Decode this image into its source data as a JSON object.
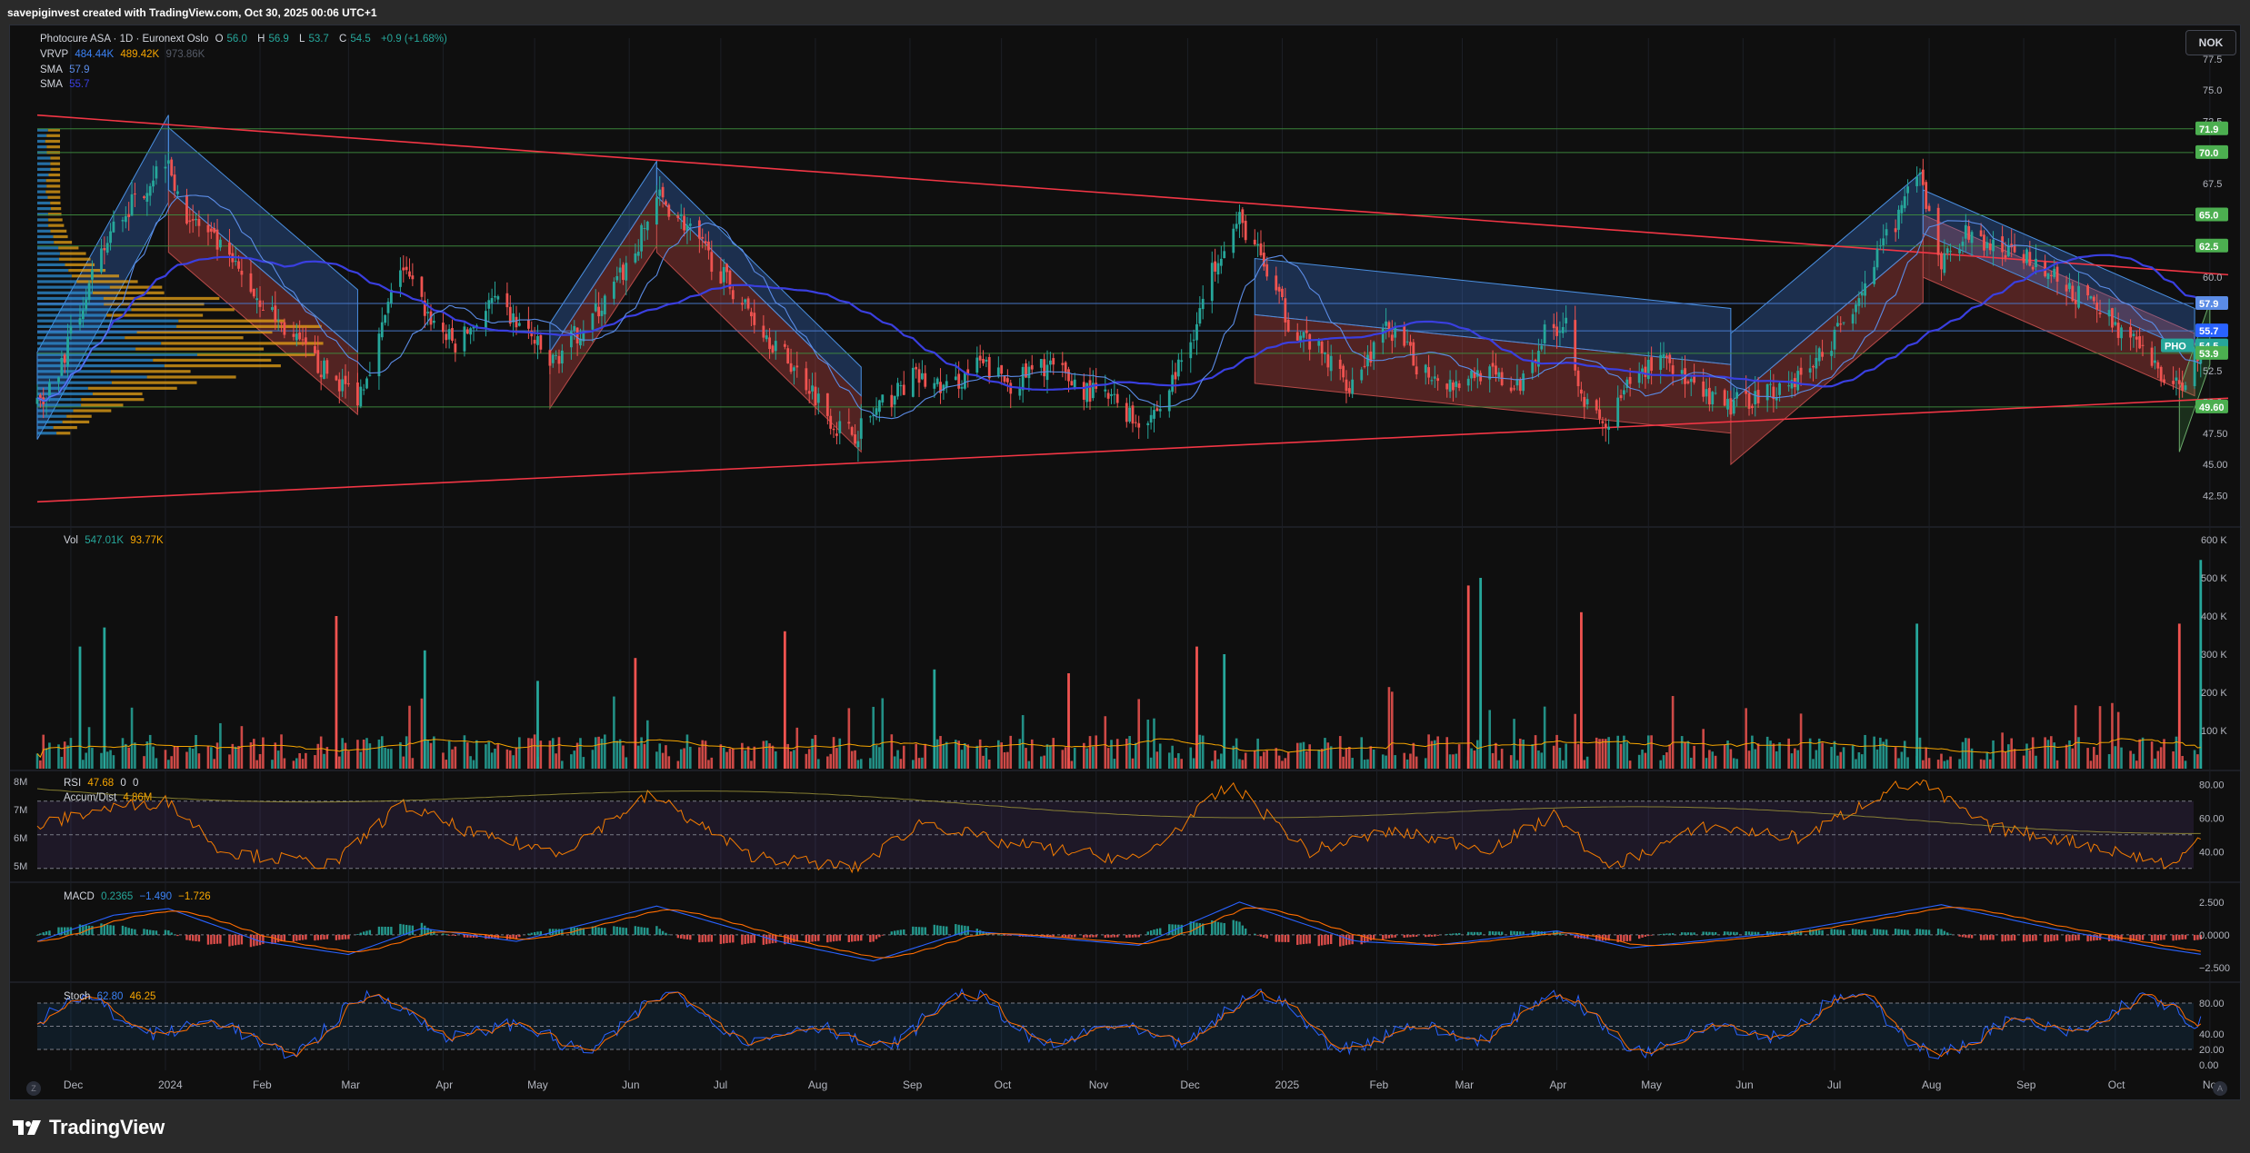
{
  "attribution": "savepiginvest created with TradingView.com, Oct 30, 2025 00:06 UTC+1",
  "footer_brand": "TradingView",
  "currency_button": "NOK",
  "colors": {
    "up": "#26a69a",
    "down": "#ef5350",
    "trendline": "#f23645",
    "sma_fast": "#2962ff",
    "sma_slow": "#5b8ce6",
    "vrvp_up": "#2e8fd6",
    "vrvp_down": "#e8a317",
    "hline": "#4caf50",
    "rsi": "#f57c00",
    "macd": "#2962ff",
    "signal": "#ff6d00",
    "stoch_k": "#2962ff",
    "stoch_d": "#ff6d00"
  },
  "legends": {
    "main": {
      "symbol": "Photocure ASA · 1D · Euronext Oslo",
      "o_label": "O",
      "o": "56.0",
      "h_label": "H",
      "h": "56.9",
      "l_label": "L",
      "l": "53.7",
      "c_label": "C",
      "c": "54.5",
      "change": "+0.9 (+1.68%)"
    },
    "vrvp": {
      "label": "VRVP",
      "v1": "484.44K",
      "v2": "489.42K",
      "v3": "973.86K"
    },
    "sma1": {
      "label": "SMA",
      "value": "57.9"
    },
    "sma2": {
      "label": "SMA",
      "value": "55.7"
    },
    "vol": {
      "label": "Vol",
      "v1": "547.01K",
      "v2": "93.77K"
    },
    "rsi": {
      "label": "RSI",
      "v1": "47.68",
      "v2": "0",
      "v3": "0"
    },
    "accum": {
      "label": "Accum/Dist",
      "value": "4.86M"
    },
    "macd": {
      "label": "MACD",
      "v1": "0.2365",
      "v2": "−1.490",
      "v3": "−1.726"
    },
    "stoch": {
      "label": "Stoch",
      "v1": "62.80",
      "v2": "46.25"
    }
  },
  "icons": [
    "tradingview-logo-icon",
    "zoom-left-icon",
    "zoom-right-icon"
  ],
  "corner_buttons": {
    "left": "Z",
    "right": "A"
  },
  "chart_data": {
    "type": "candlestick",
    "symbol": "PHO",
    "interval": "1D",
    "price_axis": {
      "ticks": [
        "77.5",
        "75.0",
        "72.5",
        "67.5",
        "60.0",
        "52.5",
        "50.0",
        "47.50",
        "45.00",
        "42.50"
      ],
      "range": [
        41.0,
        78.0
      ]
    },
    "price_tags": [
      {
        "value": "71.9",
        "color": "#4caf50"
      },
      {
        "value": "70.0",
        "color": "#4caf50"
      },
      {
        "value": "65.0",
        "color": "#4caf50"
      },
      {
        "value": "62.5",
        "color": "#4caf50"
      },
      {
        "value": "57.9",
        "color": "#5b8ce6"
      },
      {
        "value": "55.7",
        "color": "#2962ff"
      },
      {
        "value": "54.5",
        "color": "#26a69a"
      },
      {
        "value": "53.9",
        "color": "#4caf50"
      },
      {
        "value": "49.60",
        "color": "#4caf50"
      }
    ],
    "symbol_tag": "PHO",
    "horizontal_levels": [
      71.9,
      70.0,
      65.0,
      62.5,
      57.9,
      55.7,
      53.9,
      49.6
    ],
    "x_axis": {
      "labels": [
        "Dec",
        "2024",
        "Feb",
        "Mar",
        "Apr",
        "May",
        "Jun",
        "Jul",
        "Aug",
        "Sep",
        "Oct",
        "Nov",
        "Dec",
        "2025",
        "Feb",
        "Mar",
        "Apr",
        "May",
        "Jun",
        "Jul",
        "Aug",
        "Sep",
        "Oct",
        "Nov"
      ],
      "start": "2023-11-20",
      "end": "2025-11-07"
    },
    "trendlines": [
      {
        "from": [
          "2023-11-20",
          73.0
        ],
        "to": [
          "2025-11-07",
          60.2
        ]
      },
      {
        "from": [
          "2023-11-20",
          42.0
        ],
        "to": [
          "2025-11-07",
          50.3
        ]
      }
    ],
    "close_path": [
      [
        "2023-11-20",
        50.0
      ],
      [
        "2023-11-27",
        52.5
      ],
      [
        "2023-12-06",
        58.5
      ],
      [
        "2023-12-15",
        64.0
      ],
      [
        "2023-12-26",
        67.5
      ],
      [
        "2024-01-02",
        70.0
      ],
      [
        "2024-01-05",
        66.0
      ],
      [
        "2024-01-18",
        62.5
      ],
      [
        "2024-01-31",
        58.5
      ],
      [
        "2024-02-12",
        55.0
      ],
      [
        "2024-02-22",
        52.5
      ],
      [
        "2024-03-04",
        50.5
      ],
      [
        "2024-03-11",
        55.0
      ],
      [
        "2024-03-18",
        61.0
      ],
      [
        "2024-03-27",
        57.0
      ],
      [
        "2024-04-05",
        54.5
      ],
      [
        "2024-04-17",
        58.0
      ],
      [
        "2024-04-29",
        55.5
      ],
      [
        "2024-05-06",
        53.0
      ],
      [
        "2024-05-15",
        55.5
      ],
      [
        "2024-05-24",
        58.0
      ],
      [
        "2024-06-03",
        62.0
      ],
      [
        "2024-06-10",
        66.5
      ],
      [
        "2024-06-17",
        65.0
      ],
      [
        "2024-06-26",
        62.0
      ],
      [
        "2024-07-08",
        58.0
      ],
      [
        "2024-07-19",
        54.5
      ],
      [
        "2024-07-31",
        51.0
      ],
      [
        "2024-08-08",
        48.0
      ],
      [
        "2024-08-14",
        47.5
      ],
      [
        "2024-08-22",
        49.5
      ],
      [
        "2024-09-02",
        52.0
      ],
      [
        "2024-09-13",
        51.0
      ],
      [
        "2024-09-24",
        53.0
      ],
      [
        "2024-10-04",
        51.5
      ],
      [
        "2024-10-16",
        53.0
      ],
      [
        "2024-10-28",
        51.0
      ],
      [
        "2024-11-08",
        50.0
      ],
      [
        "2024-11-14",
        48.5
      ],
      [
        "2024-11-22",
        49.5
      ],
      [
        "2024-12-02",
        55.0
      ],
      [
        "2024-12-11",
        62.0
      ],
      [
        "2024-12-18",
        64.5
      ],
      [
        "2024-12-23",
        62.5
      ],
      [
        "2025-01-03",
        56.5
      ],
      [
        "2025-01-15",
        53.5
      ],
      [
        "2025-01-23",
        51.5
      ],
      [
        "2025-02-05",
        56.0
      ],
      [
        "2025-02-14",
        53.0
      ],
      [
        "2025-02-26",
        51.5
      ],
      [
        "2025-03-07",
        52.5
      ],
      [
        "2025-03-19",
        51.0
      ],
      [
        "2025-03-28",
        55.5
      ],
      [
        "2025-04-04",
        56.5
      ],
      [
        "2025-04-10",
        50.0
      ],
      [
        "2025-04-17",
        47.8
      ],
      [
        "2025-04-25",
        51.5
      ],
      [
        "2025-05-06",
        54.0
      ],
      [
        "2025-05-15",
        51.0
      ],
      [
        "2025-05-26",
        49.5
      ],
      [
        "2025-06-05",
        50.5
      ],
      [
        "2025-06-16",
        51.5
      ],
      [
        "2025-06-24",
        53.0
      ],
      [
        "2025-07-03",
        56.0
      ],
      [
        "2025-07-14",
        61.0
      ],
      [
        "2025-07-24",
        66.0
      ],
      [
        "2025-07-29",
        68.0
      ],
      [
        "2025-08-05",
        61.0
      ],
      [
        "2025-08-12",
        63.5
      ],
      [
        "2025-08-25",
        62.0
      ],
      [
        "2025-09-04",
        61.5
      ],
      [
        "2025-09-15",
        59.0
      ],
      [
        "2025-09-26",
        57.5
      ],
      [
        "2025-10-06",
        55.0
      ],
      [
        "2025-10-15",
        52.5
      ],
      [
        "2025-10-22",
        51.0
      ],
      [
        "2025-10-27",
        53.7
      ],
      [
        "2025-10-29",
        54.5
      ]
    ],
    "channels": [
      {
        "x1": "2023-11-20",
        "x2": "2024-01-02",
        "low1": 47.0,
        "low2": 66.0,
        "width": 7.0,
        "color": "blue"
      },
      {
        "x1": "2024-01-02",
        "x2": "2024-03-04",
        "low1": 62.0,
        "low2": 49.0,
        "width": 5.0,
        "color": "red"
      },
      {
        "x1": "2024-01-02",
        "x2": "2024-03-04",
        "low1": 67.0,
        "low2": 54.0,
        "width": 5.0,
        "color": "blue"
      },
      {
        "x1": "2024-05-06",
        "x2": "2024-06-10",
        "low1": 49.5,
        "low2": 62.5,
        "width": 4.5,
        "color": "red"
      },
      {
        "x1": "2024-05-06",
        "x2": "2024-06-10",
        "low1": 54.0,
        "low2": 67.0,
        "width": 2.3,
        "color": "blue"
      },
      {
        "x1": "2024-06-10",
        "x2": "2024-08-16",
        "low1": 62.0,
        "low2": 46.0,
        "width": 4.5,
        "color": "red"
      },
      {
        "x1": "2024-06-10",
        "x2": "2024-08-16",
        "low1": 66.5,
        "low2": 50.5,
        "width": 2.3,
        "color": "blue"
      },
      {
        "x1": "2024-12-23",
        "x2": "2025-05-28",
        "low1": 51.5,
        "low2": 47.5,
        "width": 5.5,
        "color": "red"
      },
      {
        "x1": "2024-12-23",
        "x2": "2025-05-28",
        "low1": 57.0,
        "low2": 53.0,
        "width": 4.5,
        "color": "blue"
      },
      {
        "x1": "2025-05-28",
        "x2": "2025-07-30",
        "low1": 45.0,
        "low2": 58.0,
        "width": 5.0,
        "color": "red"
      },
      {
        "x1": "2025-05-28",
        "x2": "2025-07-30",
        "low1": 50.0,
        "low2": 63.0,
        "width": 5.5,
        "color": "blue"
      },
      {
        "x1": "2025-07-30",
        "x2": "2025-10-27",
        "low1": 60.0,
        "low2": 50.5,
        "width": 5.0,
        "color": "red"
      },
      {
        "x1": "2025-07-30",
        "x2": "2025-10-27",
        "low1": 63.5,
        "low2": 54.0,
        "width": 3.5,
        "color": "blue"
      },
      {
        "x1": "2025-10-22",
        "x2": "2025-11-01",
        "low1": 46.0,
        "low2": 53.0,
        "width": 5.0,
        "color": "green"
      }
    ],
    "volume_axis": {
      "ticks": [
        "600 K",
        "500 K",
        "400 K",
        "300 K",
        "200 K",
        "100 K"
      ],
      "max": 600
    },
    "volume_spikes_k": [
      {
        "x": "2023-12-04",
        "v": 320,
        "up": true
      },
      {
        "x": "2023-12-12",
        "v": 370,
        "up": true
      },
      {
        "x": "2024-02-26",
        "v": 400,
        "up": false
      },
      {
        "x": "2024-03-26",
        "v": 310,
        "up": true
      },
      {
        "x": "2024-05-02",
        "v": 230,
        "up": true
      },
      {
        "x": "2024-06-03",
        "v": 290,
        "up": false
      },
      {
        "x": "2024-07-22",
        "v": 360,
        "up": false
      },
      {
        "x": "2024-09-09",
        "v": 260,
        "up": true
      },
      {
        "x": "2024-10-23",
        "v": 250,
        "up": false
      },
      {
        "x": "2024-12-04",
        "v": 320,
        "up": false
      },
      {
        "x": "2024-12-13",
        "v": 300,
        "up": true
      },
      {
        "x": "2025-03-03",
        "v": 480,
        "up": false
      },
      {
        "x": "2025-03-07",
        "v": 500,
        "up": true
      },
      {
        "x": "2025-04-09",
        "v": 410,
        "up": false
      },
      {
        "x": "2025-07-28",
        "v": 380,
        "up": true
      },
      {
        "x": "2025-10-22",
        "v": 380,
        "up": false
      },
      {
        "x": "2025-10-29",
        "v": 547,
        "up": true
      }
    ],
    "rsi_axis": {
      "ticks": [
        "80.00",
        "60.00",
        "40.00"
      ],
      "range": [
        25,
        85
      ]
    },
    "accum_axis": {
      "ticks": [
        "8M",
        "7M",
        "6M",
        "5M"
      ]
    },
    "rsi_path": [
      [
        "2023-11-20",
        55
      ],
      [
        "2023-12-10",
        65
      ],
      [
        "2024-01-02",
        70
      ],
      [
        "2024-01-20",
        40
      ],
      [
        "2024-02-25",
        32
      ],
      [
        "2024-03-18",
        68
      ],
      [
        "2024-04-15",
        48
      ],
      [
        "2024-05-10",
        40
      ],
      [
        "2024-06-08",
        74
      ],
      [
        "2024-07-10",
        38
      ],
      [
        "2024-08-14",
        30
      ],
      [
        "2024-09-05",
        58
      ],
      [
        "2024-10-01",
        45
      ],
      [
        "2024-11-15",
        35
      ],
      [
        "2024-12-15",
        80
      ],
      [
        "2025-01-10",
        40
      ],
      [
        "2025-02-05",
        52
      ],
      [
        "2025-03-10",
        42
      ],
      [
        "2025-04-01",
        62
      ],
      [
        "2025-04-17",
        30
      ],
      [
        "2025-05-20",
        55
      ],
      [
        "2025-06-20",
        48
      ],
      [
        "2025-07-20",
        78
      ],
      [
        "2025-07-30",
        80
      ],
      [
        "2025-08-20",
        55
      ],
      [
        "2025-09-20",
        45
      ],
      [
        "2025-10-20",
        32
      ],
      [
        "2025-10-29",
        47.68
      ]
    ],
    "macd_axis": {
      "ticks": [
        "2.500",
        "0.0000",
        "−2.500"
      ],
      "range": [
        -3.2,
        3.6
      ]
    },
    "macd_path": [
      [
        "2023-11-20",
        -0.5
      ],
      [
        "2023-12-15",
        1.5
      ],
      [
        "2024-01-02",
        2.0
      ],
      [
        "2024-02-01",
        -0.5
      ],
      [
        "2024-03-01",
        -1.5
      ],
      [
        "2024-03-25",
        0.5
      ],
      [
        "2024-04-25",
        -0.5
      ],
      [
        "2024-06-10",
        2.2
      ],
      [
        "2024-07-20",
        -0.5
      ],
      [
        "2024-08-20",
        -2.0
      ],
      [
        "2024-09-20",
        0.3
      ],
      [
        "2024-11-15",
        -0.8
      ],
      [
        "2024-12-18",
        2.5
      ],
      [
        "2025-01-25",
        -0.5
      ],
      [
        "2025-02-20",
        -0.8
      ],
      [
        "2025-04-01",
        0.3
      ],
      [
        "2025-04-25",
        -1.0
      ],
      [
        "2025-06-15",
        0.2
      ],
      [
        "2025-08-05",
        2.3
      ],
      [
        "2025-09-10",
        0.5
      ],
      [
        "2025-10-15",
        -1.0
      ],
      [
        "2025-10-29",
        -1.49
      ]
    ],
    "stoch_axis": {
      "ticks": [
        "80.00",
        "40.00",
        "20.00",
        "0.00"
      ],
      "range": [
        0,
        100
      ]
    },
    "stoch_value": 62.8
  }
}
